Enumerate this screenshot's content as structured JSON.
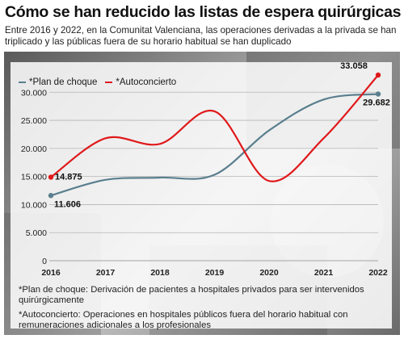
{
  "title": "Cómo se han reducido las listas de espera quirúrgicas",
  "subtitle": "Entre 2016 y 2022, en la Comunitat Valenciana, las operaciones derivadas a la privada se han triplicado y las públicas fuera de su horario habitual se han duplicado",
  "colors": {
    "plan_de_choque": "#5a7f8e",
    "autoconcierto": "#e0191b",
    "grid": "#b5b5b5",
    "axis_text": "#222222"
  },
  "chart_data": {
    "type": "line",
    "x": [
      "2016",
      "2017",
      "2018",
      "2019",
      "2020",
      "2021",
      "2022"
    ],
    "ylim": [
      0,
      33058
    ],
    "yticks": [
      "0",
      "5.000",
      "10.000",
      "15.000",
      "20.000",
      "25.000",
      "30.000"
    ],
    "ytick_values": [
      0,
      5000,
      10000,
      15000,
      20000,
      25000,
      30000
    ],
    "grid": true,
    "legend_position": "top-left",
    "series": [
      {
        "name": "*Plan de choque",
        "values": [
          11606,
          14400,
          14800,
          15300,
          23200,
          28700,
          29682
        ],
        "start_label": "11.606",
        "end_label": "29.682"
      },
      {
        "name": "*Autoconcierto",
        "values": [
          14875,
          21800,
          20800,
          26600,
          14200,
          21800,
          33058
        ],
        "start_label": "14.875",
        "end_label": "33.058"
      }
    ]
  },
  "notes": [
    {
      "term": "*Plan de choque:",
      "text": " Derivación de pacientes a hospitales privados para ser intervenidos quirúrgicamente"
    },
    {
      "term": "*Autoconcierto:",
      "text": " Operaciones en hospitales públicos fuera del horario habitual con remuneraciones adicionales a los profesionales"
    }
  ]
}
